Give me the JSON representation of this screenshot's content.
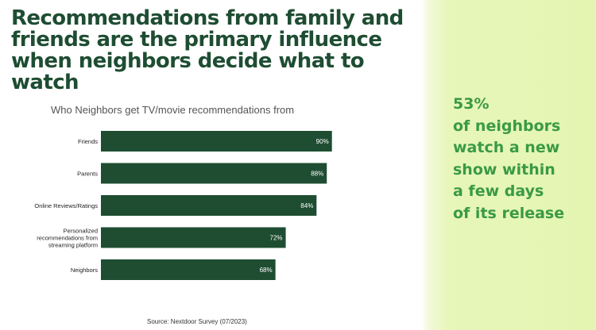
{
  "headline": {
    "lines": [
      "Recommendations from family and",
      "friends are the primary influence",
      "when neighbors decide what to watch"
    ]
  },
  "chart_data": {
    "type": "bar",
    "orientation": "horizontal",
    "title": "Who Neighbors get TV/movie recommendations from",
    "categories": [
      "Friends",
      "Parents",
      "Online Reviews/Ratings",
      "Personalized recommendations from streaming platform",
      "Neighbors"
    ],
    "category_display_lines": [
      [
        "Friends"
      ],
      [
        "Parents"
      ],
      [
        "Online Reviews/Ratings"
      ],
      [
        "Personalized",
        "recommendations from",
        "streaming platform"
      ],
      [
        "Neighbors"
      ]
    ],
    "values": [
      90,
      88,
      84,
      72,
      68
    ],
    "value_labels": [
      "90%",
      "88%",
      "84%",
      "72%",
      "68%"
    ],
    "xlim": [
      0,
      100
    ],
    "grid": false,
    "bar_color": "#1e4d32",
    "label_color": "#ffffff"
  },
  "source": "Source: Nextdoor Survey (07/2023)",
  "callout": {
    "lines": [
      "53%",
      "of neighbors",
      "watch a new",
      "show within",
      "a few days",
      "of its release"
    ]
  },
  "colors": {
    "headline": "#1e4d32",
    "callout": "#3a9a45",
    "panel": "#e4f5b2"
  }
}
